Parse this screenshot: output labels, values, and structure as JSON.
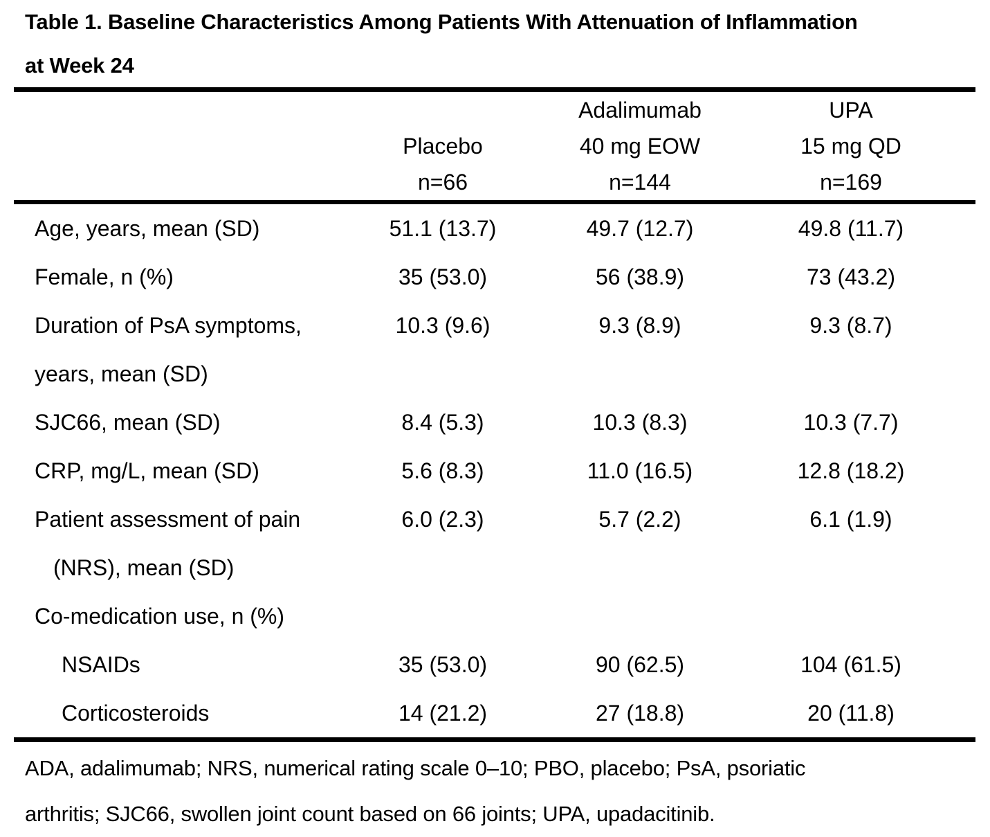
{
  "title": {
    "line1": "Table 1. Baseline Characteristics Among Patients With Attenuation of Inflammation",
    "line2": "at Week 24"
  },
  "table": {
    "columns": [
      {
        "name": "placebo",
        "lines": [
          "",
          "Placebo",
          "n=66"
        ]
      },
      {
        "name": "adalimumab",
        "lines": [
          "Adalimumab",
          "40 mg EOW",
          "n=144"
        ]
      },
      {
        "name": "upadacitinib",
        "lines": [
          "UPA",
          "15 mg QD",
          "n=169"
        ]
      }
    ],
    "rows": [
      {
        "label": "Age, years, mean (SD)",
        "indent": 0,
        "values": [
          "51.1 (13.7)",
          "49.7 (12.7)",
          "49.8 (11.7)"
        ]
      },
      {
        "label": "Female, n (%)",
        "indent": 0,
        "values": [
          "35 (53.0)",
          "56 (38.9)",
          "73 (43.2)"
        ]
      },
      {
        "label": "Duration of PsA symptoms,",
        "indent": 0,
        "values": [
          "10.3 (9.6)",
          "9.3 (8.9)",
          "9.3 (8.7)"
        ]
      },
      {
        "label": "years, mean (SD)",
        "indent": 0,
        "values": []
      },
      {
        "label": "SJC66, mean (SD)",
        "indent": 0,
        "values": [
          "8.4 (5.3)",
          "10.3 (8.3)",
          "10.3 (7.7)"
        ]
      },
      {
        "label": "CRP, mg/L, mean (SD)",
        "indent": 0,
        "values": [
          "5.6 (8.3)",
          "11.0 (16.5)",
          "12.8 (18.2)"
        ]
      },
      {
        "label": "Patient assessment of pain",
        "indent": 0,
        "values": [
          "6.0 (2.3)",
          "5.7 (2.2)",
          "6.1 (1.9)"
        ]
      },
      {
        "label": "(NRS), mean (SD)",
        "indent": 1,
        "values": []
      },
      {
        "label": "Co-medication use, n (%)",
        "indent": 0,
        "values": []
      },
      {
        "label": "NSAIDs",
        "indent": 2,
        "values": [
          "35 (53.0)",
          "90 (62.5)",
          "104 (61.5)"
        ]
      },
      {
        "label": "Corticosteroids",
        "indent": 2,
        "values": [
          "14 (21.2)",
          "27 (18.8)",
          "20 (11.8)"
        ]
      }
    ]
  },
  "footnote": {
    "line1": "ADA, adalimumab; NRS, numerical rating scale 0–10; PBO, placebo; PsA, psoriatic",
    "line2": "arthritis; SJC66, swollen joint count based on 66 joints; UPA, upadacitinib."
  },
  "colors": {
    "text": "#000000",
    "rule": "#000000",
    "background": "#ffffff"
  }
}
